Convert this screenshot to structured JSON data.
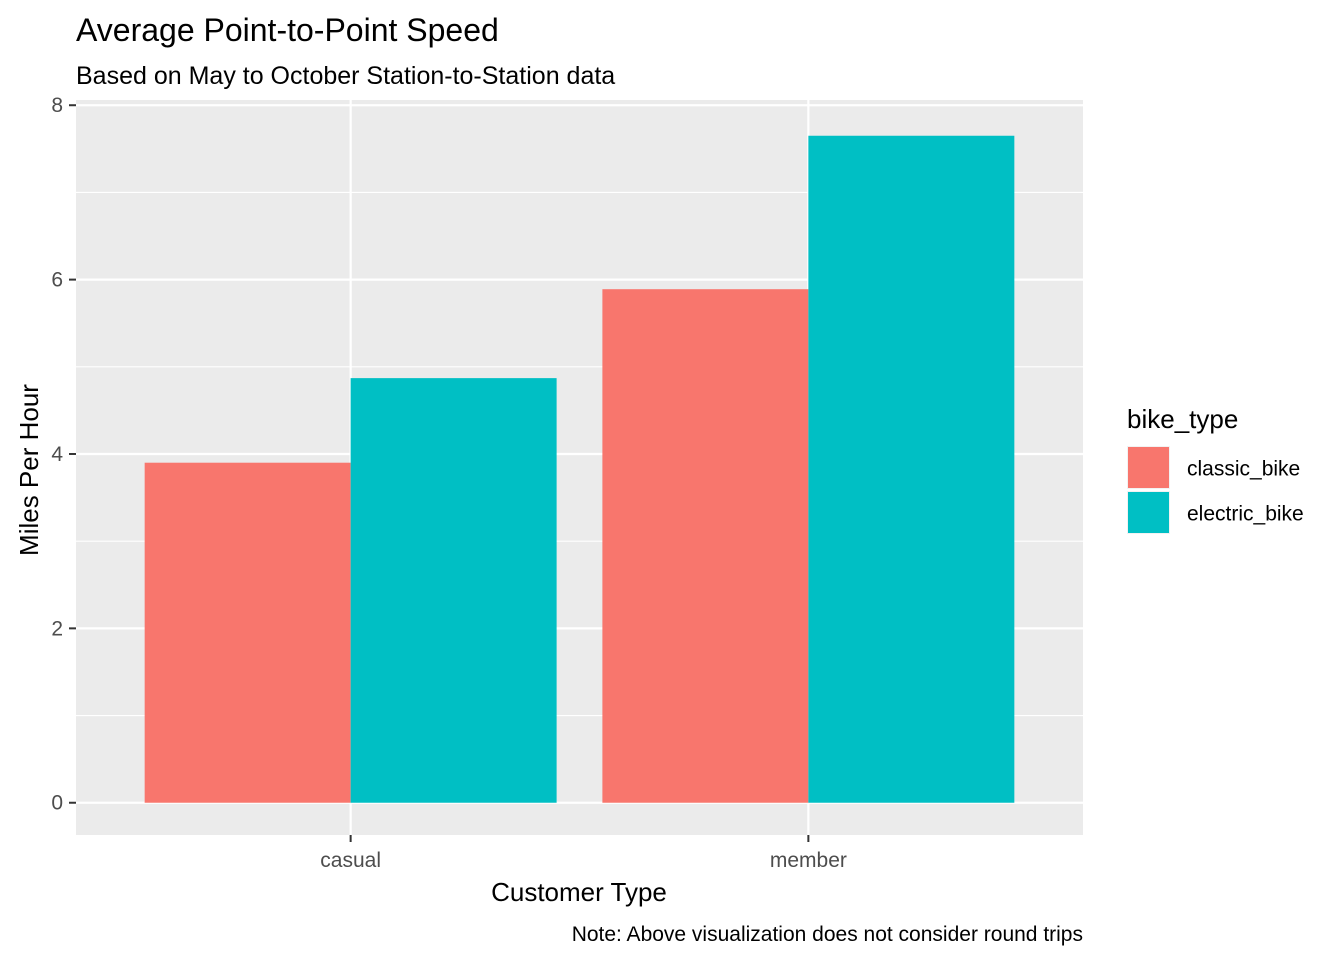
{
  "chart_data": {
    "type": "bar",
    "title": "Average Point-to-Point Speed",
    "subtitle": "Based on May to October Station-to-Station data",
    "xlabel": "Customer Type",
    "ylabel": "Miles Per Hour",
    "caption": "Note: Above visualization does not consider round trips",
    "categories": [
      "casual",
      "member"
    ],
    "series": [
      {
        "name": "classic_bike",
        "values": [
          3.9,
          5.89
        ],
        "color": "#F8766D"
      },
      {
        "name": "electric_bike",
        "values": [
          4.87,
          7.65
        ],
        "color": "#00BFC4"
      }
    ],
    "ylim": [
      -0.37,
      8.06
    ],
    "yticks": [
      0,
      2,
      4,
      6,
      8
    ],
    "grid": true,
    "legend": {
      "title": "bike_type",
      "placement": "right"
    },
    "panel_background": "#EBEBEB",
    "grid_color": "#FFFFFF"
  }
}
